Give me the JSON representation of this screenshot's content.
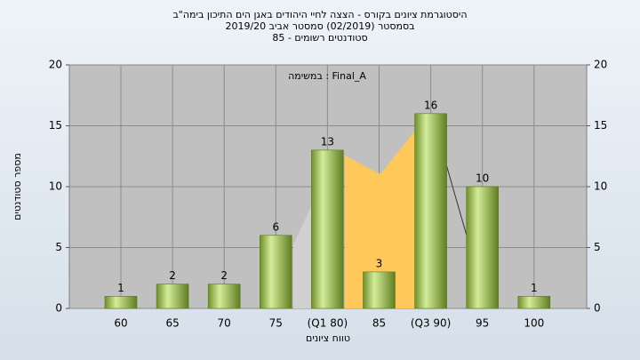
{
  "chart_data": {
    "type": "bar",
    "title": "היסטוגרמת ציונים בקורס - הצצה לחיי היהודים באגן הים התיכון בימה\"ב",
    "subtitle": "בסמסטר  (02/2019)  סמסטר אביב 2019/20",
    "subtitle2": "סטודנטים רשומים - 85",
    "annotation": "במשימה : Final_A",
    "x_label": "טווח ציונים",
    "y_label": "מספר סטודנטים",
    "categories": [
      "60",
      "65",
      "70",
      "75",
      "(Q1 80)",
      "85",
      "(Q3 90)",
      "95",
      "100"
    ],
    "values": [
      1,
      2,
      2,
      6,
      13,
      3,
      16,
      10,
      1
    ],
    "color": "#9bc048",
    "ylim": [
      0,
      20
    ],
    "yticks": [
      0,
      5,
      10,
      15,
      20
    ],
    "y2lim": [
      0,
      20
    ],
    "y2ticks": [
      0,
      5,
      10,
      15,
      20
    ],
    "grid": true
  }
}
